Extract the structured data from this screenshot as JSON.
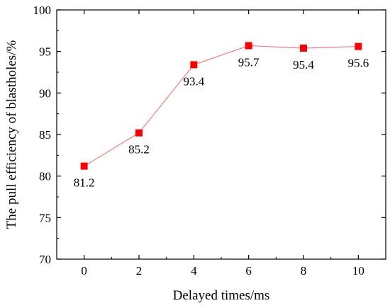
{
  "chart_data": {
    "type": "line",
    "xlabel": "Delayed times/ms",
    "ylabel": "The pull efficiency of blastholes/%",
    "xlim": [
      -1,
      11
    ],
    "ylim": [
      70,
      100
    ],
    "xticks": [
      "0",
      "2",
      "4",
      "6",
      "8",
      "10"
    ],
    "yticks": [
      "70",
      "75",
      "80",
      "85",
      "90",
      "95",
      "100"
    ],
    "grid": false,
    "marker": "square",
    "series": [
      {
        "x": [
          0,
          2,
          4,
          6,
          8,
          10
        ],
        "values": [
          81.2,
          85.2,
          93.4,
          95.7,
          95.4,
          95.6
        ],
        "labels": [
          "81.2",
          "85.2",
          "93.4",
          "95.7",
          "95.4",
          "95.6"
        ],
        "color": "#ff0000",
        "line_color": "#f08080"
      }
    ]
  }
}
